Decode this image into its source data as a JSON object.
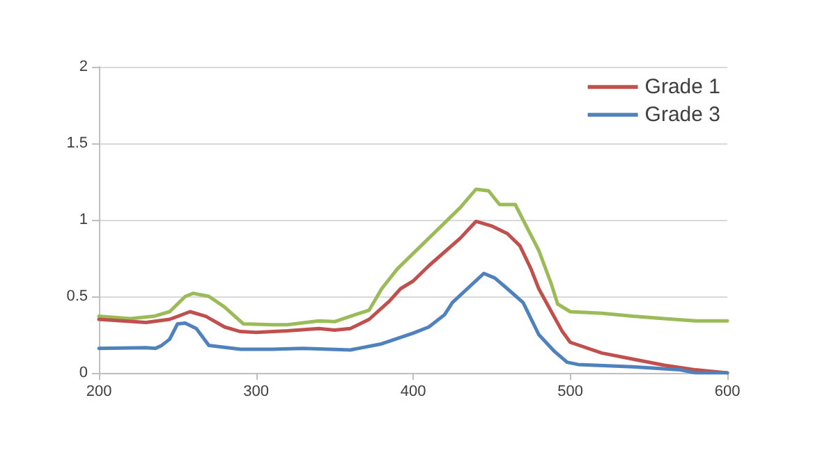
{
  "chart_data": {
    "type": "line",
    "legend": "top right",
    "grid": "y",
    "marker": "none",
    "line_style": "solid",
    "xlim": [
      200,
      600
    ],
    "xticks": [
      200,
      300,
      400,
      500,
      600
    ],
    "ylim": [
      0,
      2
    ],
    "yticks": [
      0,
      0.5,
      1,
      1.5,
      2
    ],
    "series": [
      {
        "color": "#9bbb59",
        "x": [
          200,
          220,
          235,
          245,
          255,
          260,
          270,
          280,
          292,
          310,
          320,
          340,
          350,
          360,
          372,
          380,
          390,
          400,
          420,
          430,
          440,
          448,
          455,
          465,
          472,
          480,
          488,
          492,
          500,
          520,
          540,
          560,
          580,
          600
        ],
        "values": [
          0.37,
          0.355,
          0.37,
          0.4,
          0.5,
          0.52,
          0.5,
          0.43,
          0.32,
          0.315,
          0.315,
          0.34,
          0.335,
          0.37,
          0.41,
          0.55,
          0.68,
          0.78,
          0.98,
          1.08,
          1.2,
          1.19,
          1.1,
          1.1,
          0.96,
          0.8,
          0.58,
          0.45,
          0.4,
          0.39,
          0.37,
          0.355,
          0.34,
          0.34
        ]
      },
      {
        "name": "Grade 1",
        "color": "#c0504d",
        "x": [
          200,
          230,
          245,
          258,
          268,
          280,
          290,
          300,
          320,
          340,
          350,
          360,
          372,
          385,
          392,
          400,
          410,
          430,
          440,
          450,
          460,
          468,
          475,
          480,
          488,
          495,
          500,
          520,
          540,
          560,
          580,
          600
        ],
        "values": [
          0.35,
          0.33,
          0.35,
          0.4,
          0.37,
          0.3,
          0.27,
          0.265,
          0.275,
          0.29,
          0.28,
          0.29,
          0.35,
          0.47,
          0.55,
          0.6,
          0.7,
          0.88,
          0.99,
          0.96,
          0.91,
          0.83,
          0.68,
          0.55,
          0.4,
          0.27,
          0.2,
          0.13,
          0.09,
          0.05,
          0.02,
          0
        ]
      },
      {
        "name": "Grade 3",
        "color": "#4f81bd",
        "x": [
          200,
          230,
          236,
          240,
          245,
          250,
          255,
          262,
          270,
          290,
          310,
          330,
          360,
          380,
          400,
          410,
          420,
          425,
          445,
          452,
          460,
          470,
          480,
          490,
          498,
          505,
          540,
          570,
          580,
          600
        ],
        "values": [
          0.16,
          0.165,
          0.16,
          0.18,
          0.22,
          0.32,
          0.325,
          0.29,
          0.18,
          0.155,
          0.155,
          0.16,
          0.15,
          0.19,
          0.26,
          0.3,
          0.38,
          0.46,
          0.65,
          0.62,
          0.55,
          0.46,
          0.25,
          0.14,
          0.07,
          0.055,
          0.04,
          0.02,
          0,
          0
        ]
      }
    ]
  }
}
